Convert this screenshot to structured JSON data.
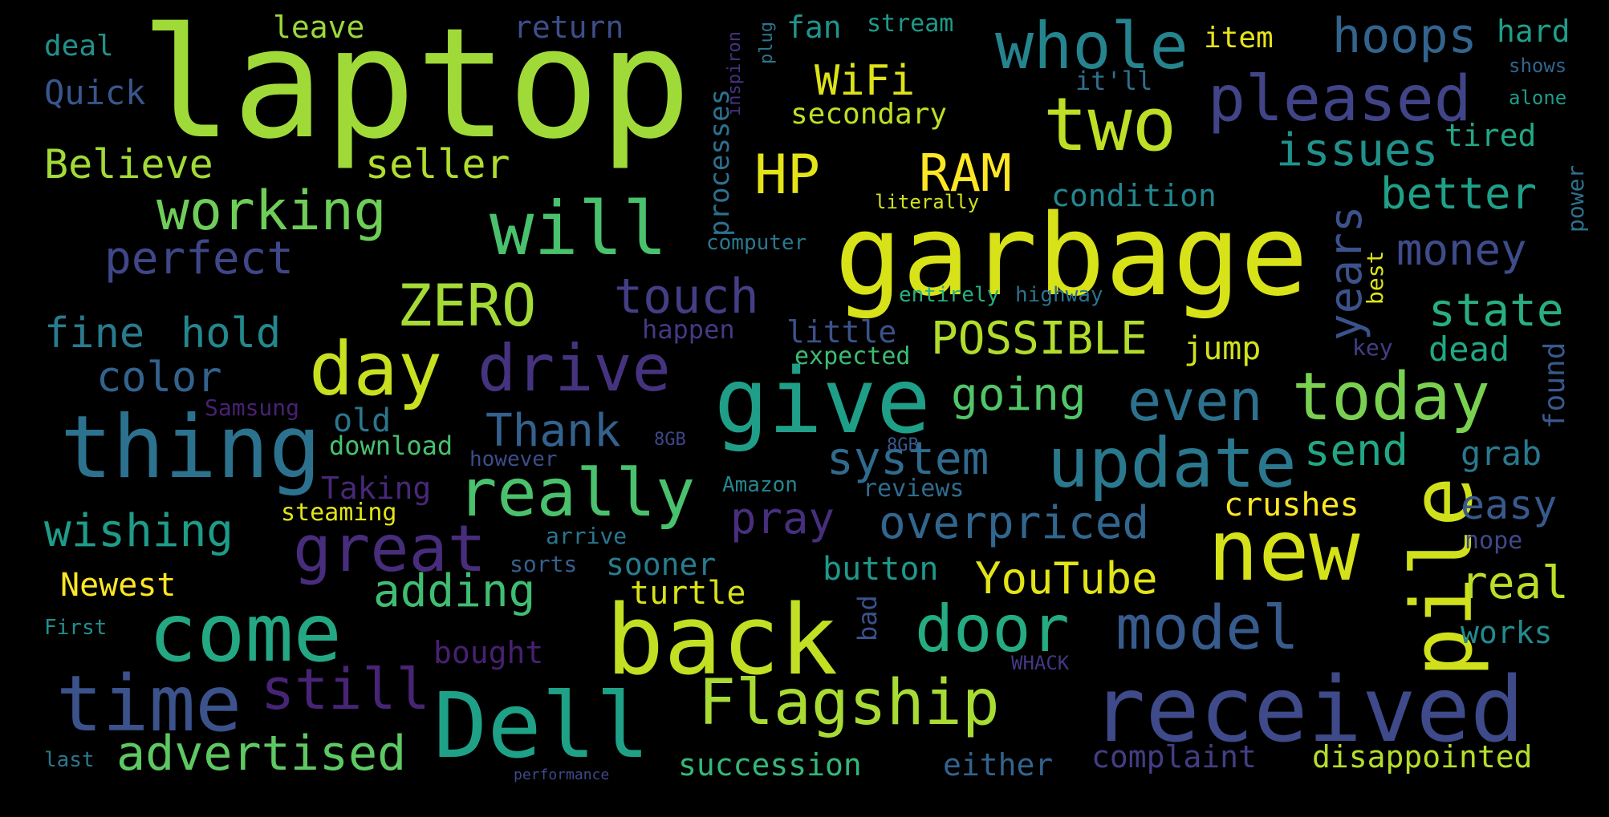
{
  "colors": {
    "background": "#000000",
    "palette": [
      "#fde725",
      "#b5de2b",
      "#6ece58",
      "#35b779",
      "#1f9e89",
      "#26828e",
      "#31688e",
      "#3e4989",
      "#482878",
      "#440154"
    ]
  },
  "words": [
    {
      "text": "laptop",
      "color": "#a0da39"
    },
    {
      "text": "garbage",
      "color": "#d8e219"
    },
    {
      "text": "received",
      "color": "#3e4a89"
    },
    {
      "text": "back",
      "color": "#c2df23"
    },
    {
      "text": "Dell",
      "color": "#1fa187"
    },
    {
      "text": "give",
      "color": "#1f9f88"
    },
    {
      "text": "thing",
      "color": "#2c728e"
    },
    {
      "text": "new",
      "color": "#d5e21a"
    },
    {
      "text": "pile",
      "color": "#d0e11c"
    },
    {
      "text": "come",
      "color": "#24a884"
    },
    {
      "text": "time",
      "color": "#3b528b"
    },
    {
      "text": "update",
      "color": "#2a788e"
    },
    {
      "text": "will",
      "color": "#4ac16d"
    },
    {
      "text": "two",
      "color": "#bddf26"
    },
    {
      "text": "whole",
      "color": "#25848e"
    },
    {
      "text": "pleased",
      "color": "#414487"
    },
    {
      "text": "really",
      "color": "#4ac16d"
    },
    {
      "text": "great",
      "color": "#472d7b"
    },
    {
      "text": "Flagship",
      "color": "#a8db34"
    },
    {
      "text": "day",
      "color": "#c8e020"
    },
    {
      "text": "drive",
      "color": "#46337f"
    },
    {
      "text": "today",
      "color": "#7ad151"
    },
    {
      "text": "even",
      "color": "#2c718e"
    },
    {
      "text": "model",
      "color": "#375b8d"
    },
    {
      "text": "door",
      "color": "#25ac82"
    },
    {
      "text": "ZERO",
      "color": "#a5db36"
    },
    {
      "text": "working",
      "color": "#6ece58"
    },
    {
      "text": "still",
      "color": "#482475"
    },
    {
      "text": "advertised",
      "color": "#5ec962"
    },
    {
      "text": "hoops",
      "color": "#32648e"
    },
    {
      "text": "HP",
      "color": "#e5e419"
    },
    {
      "text": "RAM",
      "color": "#fde725"
    },
    {
      "text": "WiFi",
      "color": "#dde318"
    },
    {
      "text": "issues",
      "color": "#20928c"
    },
    {
      "text": "better",
      "color": "#1fa088"
    },
    {
      "text": "money",
      "color": "#3e4c8a"
    },
    {
      "text": "state",
      "color": "#29af7f"
    },
    {
      "text": "years",
      "color": "#3b528b"
    },
    {
      "text": "perfect",
      "color": "#3f4788"
    },
    {
      "text": "touch",
      "color": "#433e85"
    },
    {
      "text": "POSSIBLE",
      "color": "#b2dd2d"
    },
    {
      "text": "going",
      "color": "#52c569"
    },
    {
      "text": "system",
      "color": "#2f6b8e"
    },
    {
      "text": "send",
      "color": "#22a785"
    },
    {
      "text": "overpriced",
      "color": "#31668e"
    },
    {
      "text": "YouTube",
      "color": "#e2e418"
    },
    {
      "text": "adding",
      "color": "#40bd72"
    },
    {
      "text": "wishing",
      "color": "#1e9c89"
    },
    {
      "text": "Thank",
      "color": "#34618d"
    },
    {
      "text": "pray",
      "color": "#472f7d"
    },
    {
      "text": "easy",
      "color": "#38598c"
    },
    {
      "text": "real",
      "color": "#bade28"
    },
    {
      "text": "fine",
      "color": "#297b8e"
    },
    {
      "text": "hold",
      "color": "#23888e"
    },
    {
      "text": "color",
      "color": "#33638d"
    },
    {
      "text": "Believe",
      "color": "#a2da37"
    },
    {
      "text": "seller",
      "color": "#b0dd2f"
    },
    {
      "text": "Quick",
      "color": "#39568c"
    },
    {
      "text": "deal",
      "color": "#21918c"
    },
    {
      "text": "leave",
      "color": "#9bd93c"
    },
    {
      "text": "return",
      "color": "#3d4e8a"
    },
    {
      "text": "fan",
      "color": "#1f948c"
    },
    {
      "text": "stream",
      "color": "#1f9a8a"
    },
    {
      "text": "item",
      "color": "#e7e419"
    },
    {
      "text": "hard",
      "color": "#1f9e89"
    },
    {
      "text": "secondary",
      "color": "#bddf26"
    },
    {
      "text": "it'll",
      "color": "#2d708e"
    },
    {
      "text": "tired",
      "color": "#22a785"
    },
    {
      "text": "alone",
      "color": "#1e9b8a"
    },
    {
      "text": "shows",
      "color": "#31668e"
    },
    {
      "text": "condition",
      "color": "#24868e"
    },
    {
      "text": "literally",
      "color": "#d0e11c"
    },
    {
      "text": "processes",
      "color": "#2d708e"
    },
    {
      "text": "inspiron",
      "color": "#46327e"
    },
    {
      "text": "plug",
      "color": "#2a778e"
    },
    {
      "text": "computer",
      "color": "#2a788e"
    },
    {
      "text": "entirely",
      "color": "#29af7f"
    },
    {
      "text": "highway",
      "color": "#2c728e"
    },
    {
      "text": "best",
      "color": "#dde318"
    },
    {
      "text": "power",
      "color": "#2d718e"
    },
    {
      "text": "found",
      "color": "#38598c"
    },
    {
      "text": "dead",
      "color": "#22a884"
    },
    {
      "text": "key",
      "color": "#433e85"
    },
    {
      "text": "grab",
      "color": "#2a788e"
    },
    {
      "text": "little",
      "color": "#3b528b"
    },
    {
      "text": "expected",
      "color": "#3dbc74"
    },
    {
      "text": "jump",
      "color": "#d2e21b"
    },
    {
      "text": "happen",
      "color": "#443983"
    },
    {
      "text": "old",
      "color": "#2b758e"
    },
    {
      "text": "download",
      "color": "#48c16e"
    },
    {
      "text": "however",
      "color": "#3e4c8a"
    },
    {
      "text": "Samsung",
      "color": "#482173"
    },
    {
      "text": "Taking",
      "color": "#482878"
    },
    {
      "text": "steaming",
      "color": "#e2e418"
    },
    {
      "text": "Amazon",
      "color": "#24868e"
    },
    {
      "text": "reviews",
      "color": "#2f6c8e"
    },
    {
      "text": "crushes",
      "color": "#fde725"
    },
    {
      "text": "nope",
      "color": "#3e4989"
    },
    {
      "text": "sooner",
      "color": "#287c8e"
    },
    {
      "text": "sorts",
      "color": "#35608d"
    },
    {
      "text": "arrive",
      "color": "#2b758e"
    },
    {
      "text": "button",
      "color": "#1f988b"
    },
    {
      "text": "turtle",
      "color": "#d8e219"
    },
    {
      "text": "Newest",
      "color": "#fde725"
    },
    {
      "text": "bought",
      "color": "#482071"
    },
    {
      "text": "works",
      "color": "#238a8d"
    },
    {
      "text": "bad",
      "color": "#3b528b"
    },
    {
      "text": "succession",
      "color": "#35b779"
    },
    {
      "text": "either",
      "color": "#33638d"
    },
    {
      "text": "complaint",
      "color": "#433d84"
    },
    {
      "text": "disappointed",
      "color": "#b5de2b"
    },
    {
      "text": "8GB",
      "color": "#38598c"
    },
    {
      "text": "First",
      "color": "#21908d"
    },
    {
      "text": "last",
      "color": "#2a788e"
    },
    {
      "text": "WHACK",
      "color": "#453781"
    },
    {
      "text": "performance",
      "color": "#3e4989"
    },
    {
      "text": "8GB",
      "color": "#3f4788"
    }
  ]
}
